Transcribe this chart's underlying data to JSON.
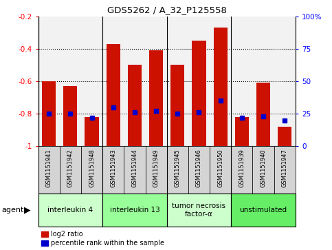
{
  "title": "GDS5262 / A_32_P125558",
  "samples": [
    "GSM1151941",
    "GSM1151942",
    "GSM1151948",
    "GSM1151943",
    "GSM1151944",
    "GSM1151949",
    "GSM1151945",
    "GSM1151946",
    "GSM1151950",
    "GSM1151939",
    "GSM1151940",
    "GSM1151947"
  ],
  "log2_ratio": [
    -0.6,
    -0.63,
    -0.82,
    -0.37,
    -0.5,
    -0.41,
    -0.5,
    -0.35,
    -0.27,
    -0.82,
    -0.61,
    -0.88
  ],
  "percentile_rank": [
    25,
    25,
    22,
    30,
    26,
    27,
    25,
    26,
    35,
    22,
    23,
    20
  ],
  "agents": [
    {
      "label": "interleukin 4",
      "start": 0,
      "end": 3,
      "color": "#ccffcc"
    },
    {
      "label": "interleukin 13",
      "start": 3,
      "end": 6,
      "color": "#99ff99"
    },
    {
      "label": "tumor necrosis\nfactor-α",
      "start": 6,
      "end": 9,
      "color": "#ccffcc"
    },
    {
      "label": "unstimulated",
      "start": 9,
      "end": 12,
      "color": "#66ee66"
    }
  ],
  "bar_color": "#cc1100",
  "dot_color": "#0000cc",
  "ylim_left": [
    -1.0,
    -0.2
  ],
  "ylim_right": [
    0,
    100
  ],
  "yticks_left": [
    -1.0,
    -0.8,
    -0.6,
    -0.4,
    -0.2
  ],
  "ytick_labels_left": [
    "-1",
    "-0.8",
    "-0.6",
    "-0.4",
    "-0.2"
  ],
  "yticks_right": [
    0,
    25,
    50,
    75,
    100
  ],
  "ytick_labels_right": [
    "0",
    "25",
    "50",
    "75",
    "100%"
  ],
  "sample_bg_color": "#d4d4d4",
  "plot_bg_color": "#f2f2f2",
  "agent_label": "agent"
}
